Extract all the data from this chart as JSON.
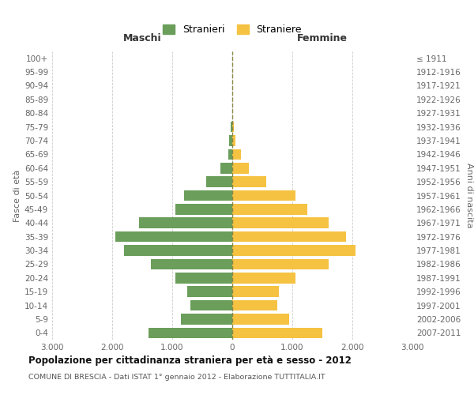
{
  "age_groups": [
    "0-4",
    "5-9",
    "10-14",
    "15-19",
    "20-24",
    "25-29",
    "30-34",
    "35-39",
    "40-44",
    "45-49",
    "50-54",
    "55-59",
    "60-64",
    "65-69",
    "70-74",
    "75-79",
    "80-84",
    "85-89",
    "90-94",
    "95-99",
    "100+"
  ],
  "birth_years": [
    "2007-2011",
    "2002-2006",
    "1997-2001",
    "1992-1996",
    "1987-1991",
    "1982-1986",
    "1977-1981",
    "1972-1976",
    "1967-1971",
    "1962-1966",
    "1957-1961",
    "1952-1956",
    "1947-1951",
    "1942-1946",
    "1937-1941",
    "1932-1936",
    "1927-1931",
    "1922-1926",
    "1917-1921",
    "1912-1916",
    "≤ 1911"
  ],
  "males": [
    1400,
    850,
    700,
    750,
    950,
    1350,
    1800,
    1950,
    1550,
    950,
    800,
    430,
    200,
    70,
    50,
    30,
    5,
    3,
    2,
    1,
    0
  ],
  "females": [
    1500,
    950,
    750,
    780,
    1050,
    1600,
    2050,
    1900,
    1600,
    1250,
    1050,
    570,
    280,
    150,
    55,
    30,
    5,
    3,
    2,
    1,
    0
  ],
  "male_color": "#6a9e5a",
  "female_color": "#f5c242",
  "center_line_color": "#888844",
  "grid_color": "#cccccc",
  "title": "Popolazione per cittadinanza straniera per età e sesso - 2012",
  "subtitle": "COMUNE DI BRESCIA - Dati ISTAT 1° gennaio 2012 - Elaborazione TUTTITALIA.IT",
  "xlabel_left": "Maschi",
  "xlabel_right": "Femmine",
  "ylabel_left": "Fasce di età",
  "ylabel_right": "Anni di nascita",
  "legend_male": "Stranieri",
  "legend_female": "Straniere",
  "xlim": 3000,
  "background_color": "#ffffff"
}
